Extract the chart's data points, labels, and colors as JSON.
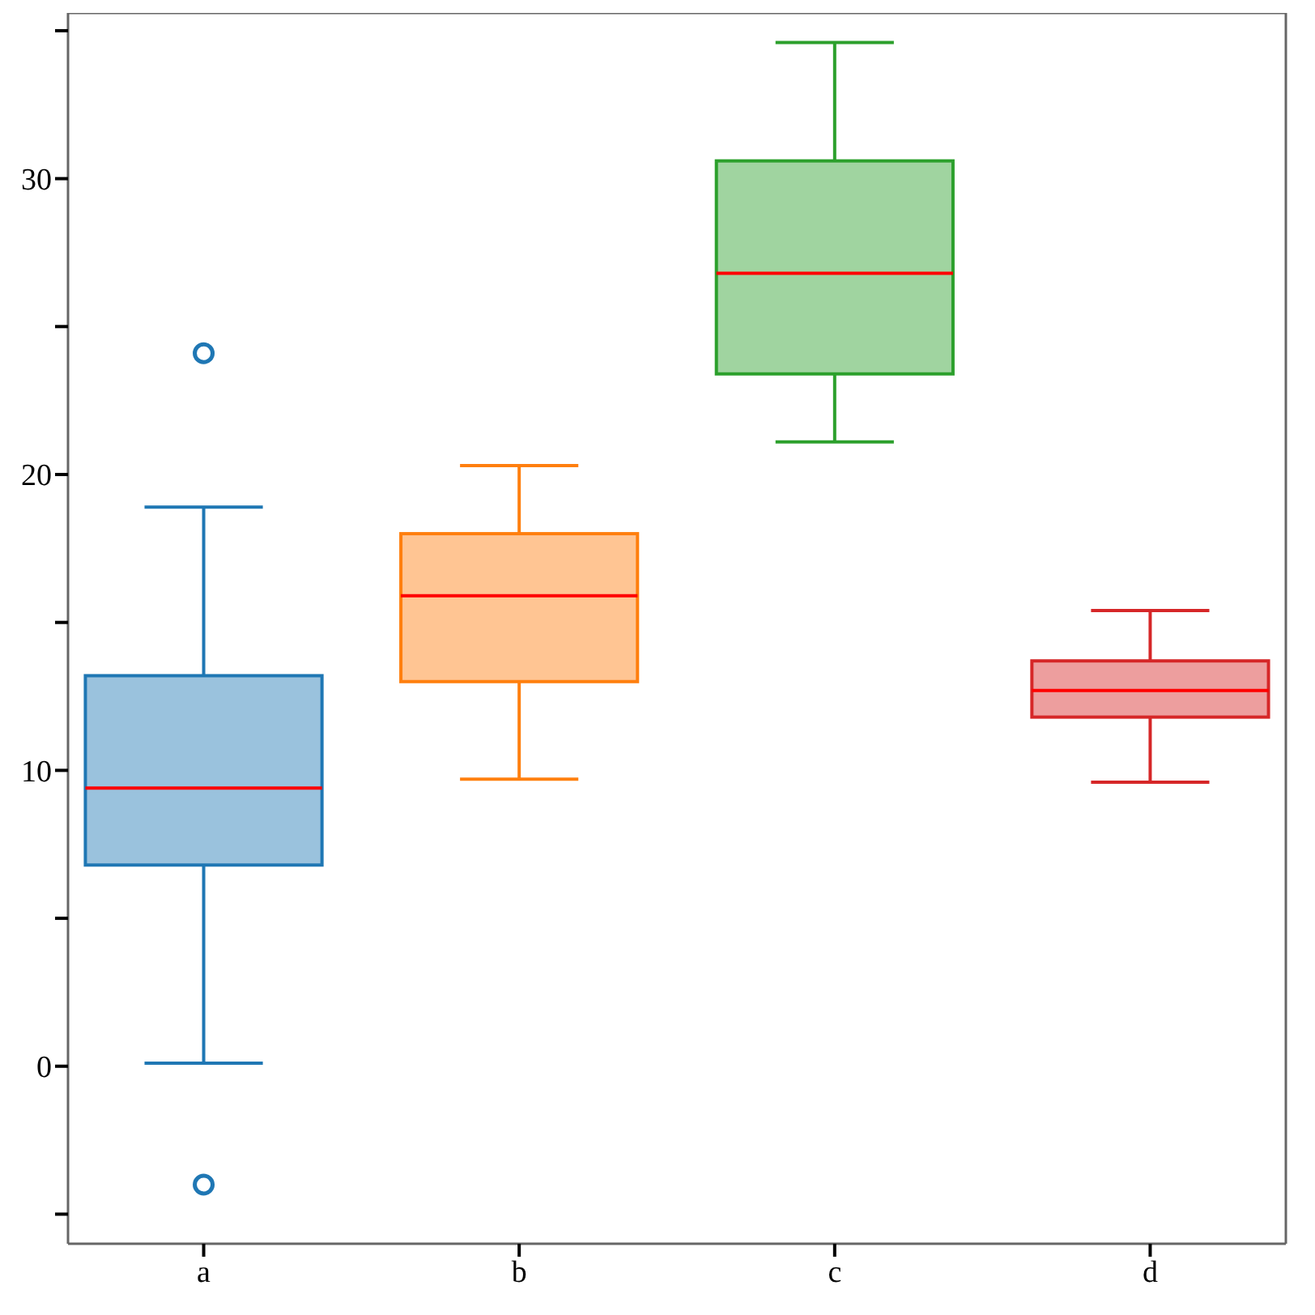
{
  "chart_data": {
    "type": "box",
    "categories": [
      "a",
      "b",
      "c",
      "d"
    ],
    "colors": [
      "#1f77b4",
      "#ff7f0e",
      "#2ca02c",
      "#d62728"
    ],
    "boxes": [
      {
        "low": 0.1,
        "q1": 6.8,
        "median": 9.4,
        "q3": 13.2,
        "high": 18.9,
        "outliers": [
          24.1,
          -4.0
        ]
      },
      {
        "low": 9.7,
        "q1": 13.0,
        "median": 15.9,
        "q3": 18.0,
        "high": 20.3
      },
      {
        "low": 21.1,
        "q1": 23.4,
        "median": 26.8,
        "q3": 30.6,
        "high": 34.6
      },
      {
        "low": 9.6,
        "q1": 11.8,
        "median": 12.7,
        "q3": 13.7,
        "high": 15.4
      }
    ],
    "ylim": [
      -6,
      35.6
    ],
    "yticks": [
      {
        "value": -5,
        "label": null
      },
      0,
      {
        "value": 5,
        "label": null
      },
      10,
      {
        "value": 15,
        "label": null
      },
      20,
      {
        "value": 25,
        "label": null
      },
      30,
      {
        "value": 35,
        "label": null
      }
    ],
    "grid": false
  }
}
